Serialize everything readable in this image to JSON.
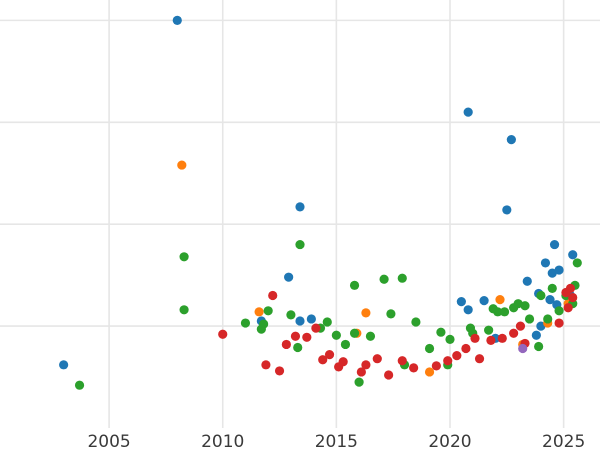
{
  "chart_data": {
    "type": "scatter",
    "title": "",
    "xlabel": "",
    "ylabel": "",
    "xlim": [
      2000.2,
      2026.6
    ],
    "ylim": [
      0,
      4.2
    ],
    "xticks": [
      2005,
      2010,
      2015,
      2020,
      2025
    ],
    "xtick_labels": [
      "2005",
      "2010",
      "2015",
      "2020",
      "2025"
    ],
    "ygrid": [
      1,
      2,
      3,
      4
    ],
    "grid": "both",
    "legend": "none",
    "series": [
      {
        "name": "blue",
        "color": "#1f77b4",
        "points": [
          [
            2003.0,
            0.62
          ],
          [
            2008.0,
            4.0
          ],
          [
            2013.4,
            2.17
          ],
          [
            2012.9,
            1.48
          ],
          [
            2011.7,
            1.05
          ],
          [
            2013.4,
            1.05
          ],
          [
            2013.9,
            1.07
          ],
          [
            2020.5,
            1.24
          ],
          [
            2020.8,
            1.16
          ],
          [
            2021.5,
            1.25
          ],
          [
            2020.8,
            3.1
          ],
          [
            2022.7,
            2.83
          ],
          [
            2022.5,
            2.14
          ],
          [
            2022.0,
            0.88
          ],
          [
            2023.4,
            1.44
          ],
          [
            2023.8,
            0.91
          ],
          [
            2023.9,
            1.32
          ],
          [
            2024.2,
            1.62
          ],
          [
            2024.5,
            1.52
          ],
          [
            2024.6,
            1.8
          ],
          [
            2024.8,
            1.55
          ],
          [
            2025.4,
            1.7
          ],
          [
            2024.4,
            1.26
          ],
          [
            2024.7,
            1.21
          ],
          [
            2025.3,
            1.3
          ],
          [
            2024.0,
            1.0
          ]
        ]
      },
      {
        "name": "orange",
        "color": "#ff7f0e",
        "points": [
          [
            2008.2,
            2.58
          ],
          [
            2011.6,
            1.14
          ],
          [
            2015.9,
            0.93
          ],
          [
            2016.3,
            1.13
          ],
          [
            2019.1,
            0.55
          ],
          [
            2022.2,
            1.26
          ],
          [
            2023.2,
            0.82
          ],
          [
            2024.3,
            1.03
          ],
          [
            2025.2,
            1.22
          ]
        ]
      },
      {
        "name": "green",
        "color": "#2ca02c",
        "points": [
          [
            2003.7,
            0.42
          ],
          [
            2008.3,
            1.68
          ],
          [
            2008.3,
            1.16
          ],
          [
            2011.0,
            1.03
          ],
          [
            2011.8,
            1.02
          ],
          [
            2011.7,
            0.97
          ],
          [
            2012.0,
            1.15
          ],
          [
            2013.0,
            1.11
          ],
          [
            2013.3,
            0.79
          ],
          [
            2013.4,
            1.8
          ],
          [
            2014.3,
            0.98
          ],
          [
            2014.6,
            1.04
          ],
          [
            2015.0,
            0.91
          ],
          [
            2015.4,
            0.82
          ],
          [
            2015.8,
            0.93
          ],
          [
            2015.8,
            1.4
          ],
          [
            2016.5,
            0.9
          ],
          [
            2017.1,
            1.46
          ],
          [
            2017.4,
            1.12
          ],
          [
            2017.9,
            1.47
          ],
          [
            2018.5,
            1.04
          ],
          [
            2019.1,
            0.78
          ],
          [
            2019.6,
            0.94
          ],
          [
            2020.0,
            0.87
          ],
          [
            2020.9,
            0.98
          ],
          [
            2021.7,
            0.96
          ],
          [
            2021.9,
            1.17
          ],
          [
            2022.1,
            1.14
          ],
          [
            2022.4,
            1.14
          ],
          [
            2022.8,
            1.18
          ],
          [
            2023.0,
            1.22
          ],
          [
            2023.3,
            1.2
          ],
          [
            2023.5,
            1.07
          ],
          [
            2024.0,
            1.3
          ],
          [
            2024.3,
            1.07
          ],
          [
            2024.5,
            1.37
          ],
          [
            2024.8,
            1.15
          ],
          [
            2025.1,
            1.3
          ],
          [
            2025.4,
            1.22
          ],
          [
            2025.5,
            1.4
          ],
          [
            2025.6,
            1.62
          ],
          [
            2023.9,
            0.8
          ],
          [
            2018.0,
            0.62
          ],
          [
            2016.0,
            0.45
          ],
          [
            2019.9,
            0.62
          ],
          [
            2021.0,
            0.93
          ]
        ]
      },
      {
        "name": "red",
        "color": "#d62728",
        "points": [
          [
            2010.0,
            0.92
          ],
          [
            2011.9,
            0.62
          ],
          [
            2012.2,
            1.3
          ],
          [
            2012.5,
            0.56
          ],
          [
            2013.2,
            0.9
          ],
          [
            2013.7,
            0.89
          ],
          [
            2014.1,
            0.98
          ],
          [
            2014.7,
            0.72
          ],
          [
            2015.1,
            0.6
          ],
          [
            2015.3,
            0.65
          ],
          [
            2016.1,
            0.55
          ],
          [
            2016.8,
            0.68
          ],
          [
            2017.3,
            0.52
          ],
          [
            2017.9,
            0.66
          ],
          [
            2018.4,
            0.59
          ],
          [
            2019.4,
            0.61
          ],
          [
            2019.9,
            0.66
          ],
          [
            2020.7,
            0.78
          ],
          [
            2021.3,
            0.68
          ],
          [
            2021.8,
            0.86
          ],
          [
            2022.3,
            0.88
          ],
          [
            2022.8,
            0.93
          ],
          [
            2023.1,
            1.0
          ],
          [
            2023.3,
            0.83
          ],
          [
            2024.8,
            1.03
          ],
          [
            2025.2,
            1.18
          ],
          [
            2025.4,
            1.28
          ],
          [
            2025.3,
            1.37
          ],
          [
            2025.1,
            1.33
          ],
          [
            2021.1,
            0.88
          ],
          [
            2020.3,
            0.71
          ],
          [
            2016.3,
            0.62
          ],
          [
            2014.4,
            0.67
          ],
          [
            2012.8,
            0.82
          ]
        ]
      },
      {
        "name": "purple",
        "color": "#9467bd",
        "points": [
          [
            2023.2,
            0.78
          ]
        ]
      }
    ]
  }
}
